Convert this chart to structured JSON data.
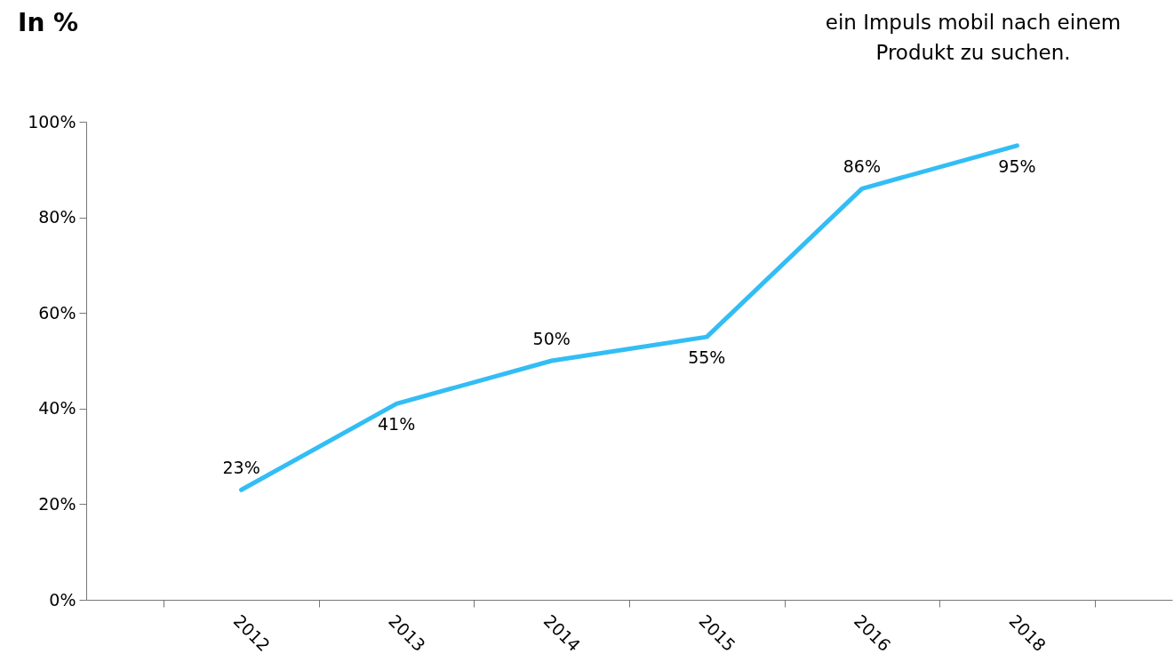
{
  "chart_data": {
    "type": "line",
    "title": "In %",
    "annotations": [
      "ein Impuls mobil nach einem\nProdukt zu suchen."
    ],
    "categories": [
      "2012",
      "2013",
      "2014",
      "2015",
      "2016",
      "2018"
    ],
    "series": [
      {
        "color": "#33bdf5",
        "values": [
          23,
          41,
          50,
          55,
          86,
          95
        ]
      }
    ],
    "value_labels": [
      "23%",
      "41%",
      "50%",
      "55%",
      "86%",
      "95%"
    ],
    "ylim": [
      0,
      100
    ],
    "yticks": [
      {
        "value": 0,
        "label": "0%"
      },
      {
        "value": 20,
        "label": "20%"
      },
      {
        "value": 40,
        "label": "40%"
      },
      {
        "value": 60,
        "label": "60%"
      },
      {
        "value": 80,
        "label": "80%"
      },
      {
        "value": 100,
        "label": "100%"
      }
    ],
    "grid": false,
    "legend": false,
    "marker": "none",
    "line_style": "solid"
  }
}
